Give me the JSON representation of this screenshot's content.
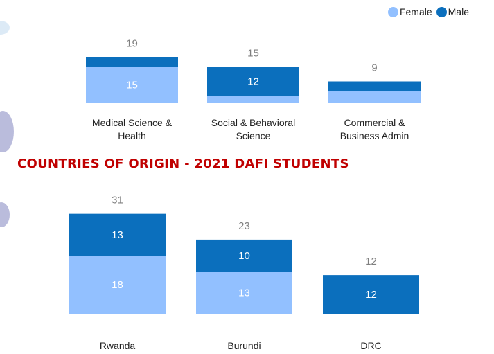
{
  "chart_data": [
    {
      "type": "stacked-bar",
      "categories": [
        "Medical Science & Health",
        "Social & Behavioral Science",
        "Commercial & Business Admin"
      ],
      "series": [
        {
          "name": "Female",
          "color": "#92c0ff",
          "values": [
            15,
            3,
            5
          ],
          "value_labels": [
            "15",
            null,
            null
          ]
        },
        {
          "name": "Male",
          "color": "#0b6fbd",
          "values": [
            4,
            12,
            4
          ],
          "value_labels": [
            null,
            "12",
            null
          ]
        }
      ],
      "totals": [
        19,
        15,
        9
      ],
      "ylim": [
        0,
        20
      ],
      "legend": "top-right"
    },
    {
      "type": "stacked-bar",
      "title": "COUNTRIES OF ORIGIN - 2021 DAFI STUDENTS",
      "categories": [
        "Rwanda",
        "Burundi",
        "DRC"
      ],
      "series": [
        {
          "color": "#92c0ff",
          "values": [
            18,
            13,
            0
          ],
          "value_labels": [
            "18",
            "13",
            null
          ]
        },
        {
          "color": "#0b6fbd",
          "values": [
            13,
            10,
            12
          ],
          "value_labels": [
            "13",
            "10",
            "12"
          ]
        }
      ],
      "totals": [
        31,
        23,
        12
      ],
      "ylim": [
        0,
        32
      ]
    }
  ]
}
